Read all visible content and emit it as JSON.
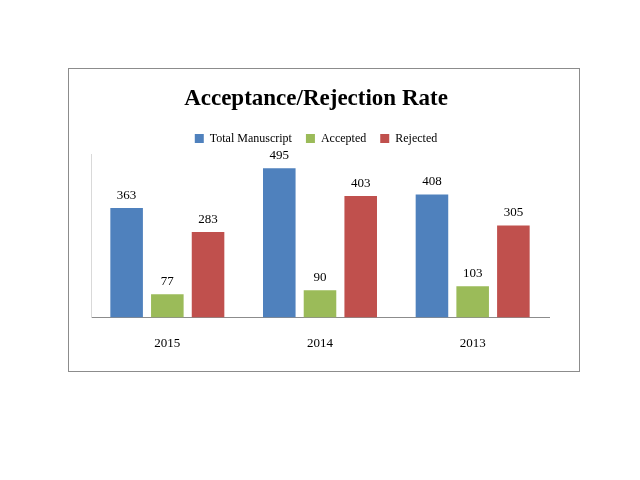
{
  "chart_data": {
    "type": "bar",
    "title": "Acceptance/Rejection Rate",
    "categories": [
      "2015",
      "2014",
      "2013"
    ],
    "series": [
      {
        "name": "Total Manuscript",
        "color": "#4f81bd",
        "values": [
          363,
          495,
          408
        ]
      },
      {
        "name": "Accepted",
        "color": "#9bbb59",
        "values": [
          77,
          90,
          103
        ]
      },
      {
        "name": "Rejected",
        "color": "#c0504d",
        "values": [
          283,
          403,
          305
        ]
      }
    ],
    "ylim": [
      0,
      540
    ],
    "grid": false,
    "legend": "top",
    "data_labels": true,
    "tick_labels": "x"
  }
}
